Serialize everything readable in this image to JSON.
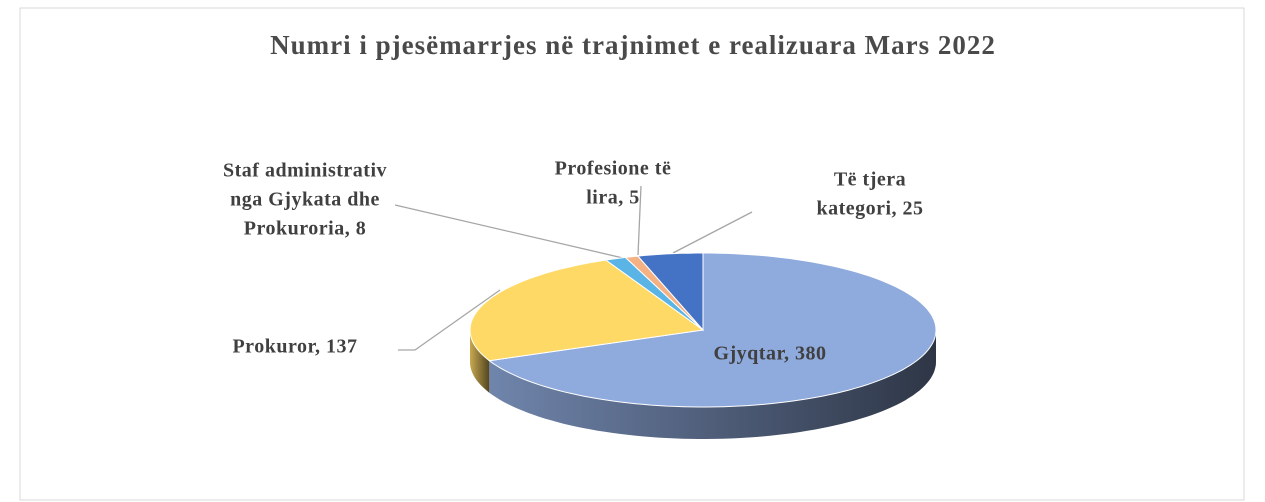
{
  "chart_data": {
    "type": "pie3d",
    "title": "Numri i pjesëmarrjes në trajnimet e realizuara Mars 2022",
    "values": [
      380,
      137,
      8,
      5,
      25
    ],
    "value_labels": [
      [
        "Gjyqtar,  380"
      ],
      [
        "Prokuror, 137"
      ],
      [
        "Staf administrativ",
        "nga Gjykata  dhe",
        "Prokuroria, 8"
      ],
      [
        "Profesione të",
        "lira, 5"
      ],
      [
        "Të tjera",
        "kategori, 25"
      ]
    ],
    "colors": [
      "#8faadc",
      "#ffd966",
      "#5ab4e6",
      "#f4b183",
      "#4472c4"
    ]
  }
}
